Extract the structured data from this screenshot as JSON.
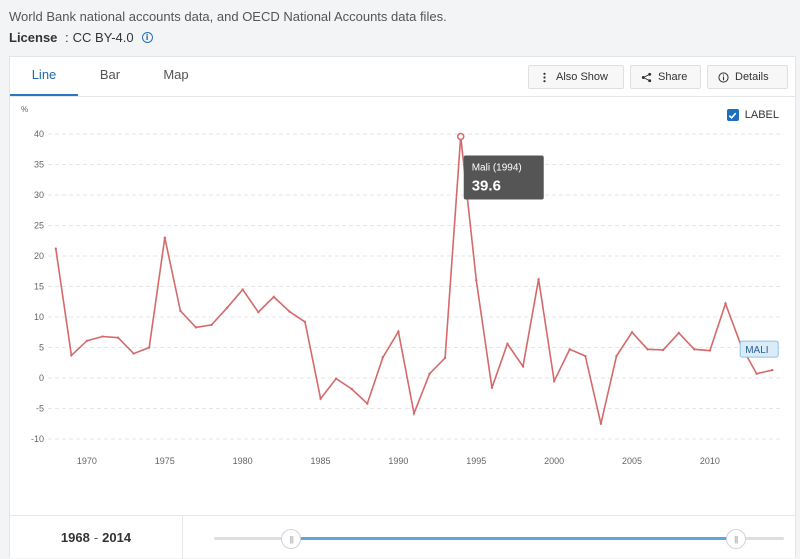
{
  "source_text": "World Bank national accounts data, and OECD National Accounts data files.",
  "license": {
    "label": "License",
    "value": "CC BY-4.0"
  },
  "tabs": [
    {
      "label": "Line",
      "active": true
    },
    {
      "label": "Bar",
      "active": false
    },
    {
      "label": "Map",
      "active": false
    }
  ],
  "buttons": {
    "also_show": "Also Show",
    "share": "Share",
    "details": "Details"
  },
  "label_toggle": {
    "text": "LABEL",
    "checked": true
  },
  "tooltip": {
    "title": "Mali (1994)",
    "value": "39.6"
  },
  "series_label": "MALI",
  "range": {
    "start": "1968",
    "end": "2014"
  },
  "slider": {
    "min_year": 1960,
    "max_year": 2019,
    "start_year": 1968,
    "end_year": 2014
  },
  "colors": {
    "line": "#d46a6a",
    "accent": "#2b78c2",
    "tooltip_bg": "#555555",
    "series_label_bg": "#d9ecf8"
  },
  "chart_data": {
    "type": "line",
    "ylabel": "%",
    "ylim": [
      -10,
      40
    ],
    "yticks": [
      40,
      35,
      30,
      25,
      20,
      15,
      10,
      5,
      0,
      -5,
      -10
    ],
    "xticks": [
      1970,
      1975,
      1980,
      1985,
      1990,
      1995,
      2000,
      2005,
      2010
    ],
    "xlim": [
      1967.5,
      2014.5
    ],
    "grid": true,
    "series": [
      {
        "name": "MALI",
        "x": [
          1968,
          1969,
          1970,
          1971,
          1972,
          1973,
          1974,
          1975,
          1976,
          1977,
          1978,
          1979,
          1980,
          1981,
          1982,
          1983,
          1984,
          1985,
          1986,
          1987,
          1988,
          1989,
          1990,
          1991,
          1992,
          1993,
          1994,
          1995,
          1996,
          1997,
          1998,
          1999,
          2000,
          2001,
          2002,
          2003,
          2004,
          2005,
          2006,
          2007,
          2008,
          2009,
          2010,
          2011,
          2012,
          2013,
          2014
        ],
        "values": [
          21.2,
          3.7,
          6.1,
          6.8,
          6.6,
          4.0,
          5.0,
          23.0,
          11.0,
          8.3,
          8.7,
          11.5,
          14.5,
          10.8,
          13.3,
          10.9,
          9.2,
          -3.4,
          -0.1,
          -1.8,
          -4.2,
          3.4,
          7.6,
          -5.8,
          0.7,
          3.3,
          39.6,
          16.0,
          -1.6,
          5.6,
          1.9,
          16.2,
          -0.5,
          4.7,
          3.6,
          -7.5,
          3.6,
          7.5,
          4.7,
          4.6,
          7.4,
          4.7,
          4.5,
          12.2,
          5.3,
          0.7,
          1.3
        ]
      }
    ]
  }
}
